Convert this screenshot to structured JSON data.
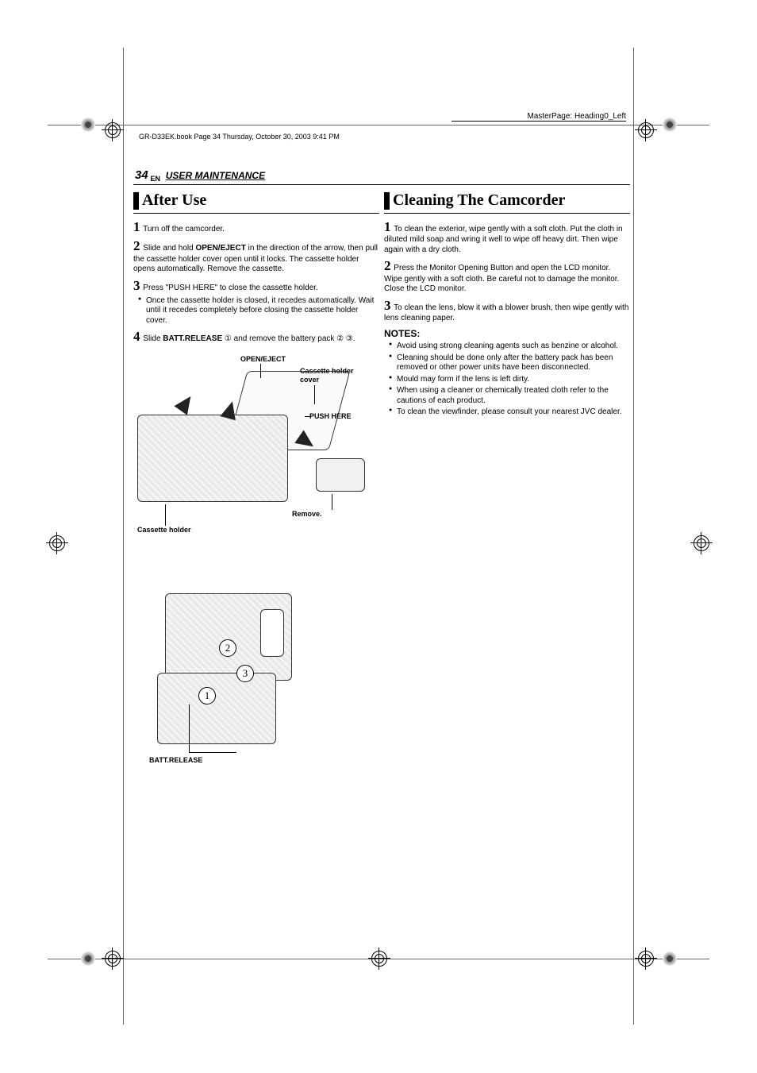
{
  "masterpage": "MasterPage: Heading0_Left",
  "bookline": "GR-D33EK.book  Page 34  Thursday, October 30, 2003  9:41 PM",
  "page_number": "34",
  "page_lang": "EN",
  "section_title": "USER MAINTENANCE",
  "left": {
    "heading": "After Use",
    "steps": [
      {
        "n": "1",
        "html": "Turn off the camcorder."
      },
      {
        "n": "2",
        "html": "Slide and hold <b>OPEN/EJECT</b> in the direction of the arrow, then pull the cassette holder cover open until it locks. The cassette holder opens automatically. Remove the cassette."
      },
      {
        "n": "3",
        "html": "Press \"PUSH HERE\" to close the cassette holder."
      }
    ],
    "sub_bullets": [
      "Once the cassette holder is closed, it recedes automatically. Wait until it recedes completely before closing the cassette holder cover."
    ],
    "step4": {
      "n": "4",
      "html": "Slide <b>BATT.RELEASE</b> ① and remove the battery pack ② ③."
    },
    "diagram1_labels": {
      "open_eject": "OPEN/EJECT",
      "cover": "Cassette holder cover",
      "push_here": "PUSH HERE",
      "remove": "Remove.",
      "holder": "Cassette holder"
    },
    "diagram2_label": "BATT.RELEASE",
    "d2_nums": [
      "1",
      "2",
      "3"
    ]
  },
  "right": {
    "heading": "Cleaning The Camcorder",
    "steps": [
      {
        "n": "1",
        "html": "To clean the exterior, wipe gently with a soft cloth. Put the cloth in diluted mild soap and wring it well to wipe off heavy dirt. Then wipe again with a dry cloth."
      },
      {
        "n": "2",
        "html": "Press the Monitor Opening Button and open the LCD monitor. Wipe gently with a soft cloth. Be careful not to damage the monitor. Close the LCD monitor."
      },
      {
        "n": "3",
        "html": "To clean the lens, blow it with a blower brush, then wipe gently with lens cleaning paper."
      }
    ],
    "notes_heading": "NOTES:",
    "notes": [
      "Avoid using strong cleaning agents such as benzine or alcohol.",
      "Cleaning should be done only after the battery pack has been removed or other power units have been disconnected.",
      "Mould may form if the lens is left dirty.",
      "When using a cleaner or chemically treated cloth refer to the cautions of each product.",
      "To clean the viewfinder, please consult your nearest JVC dealer."
    ]
  },
  "colors": {
    "text": "#000000",
    "bg": "#ffffff",
    "bar": "#000000"
  }
}
